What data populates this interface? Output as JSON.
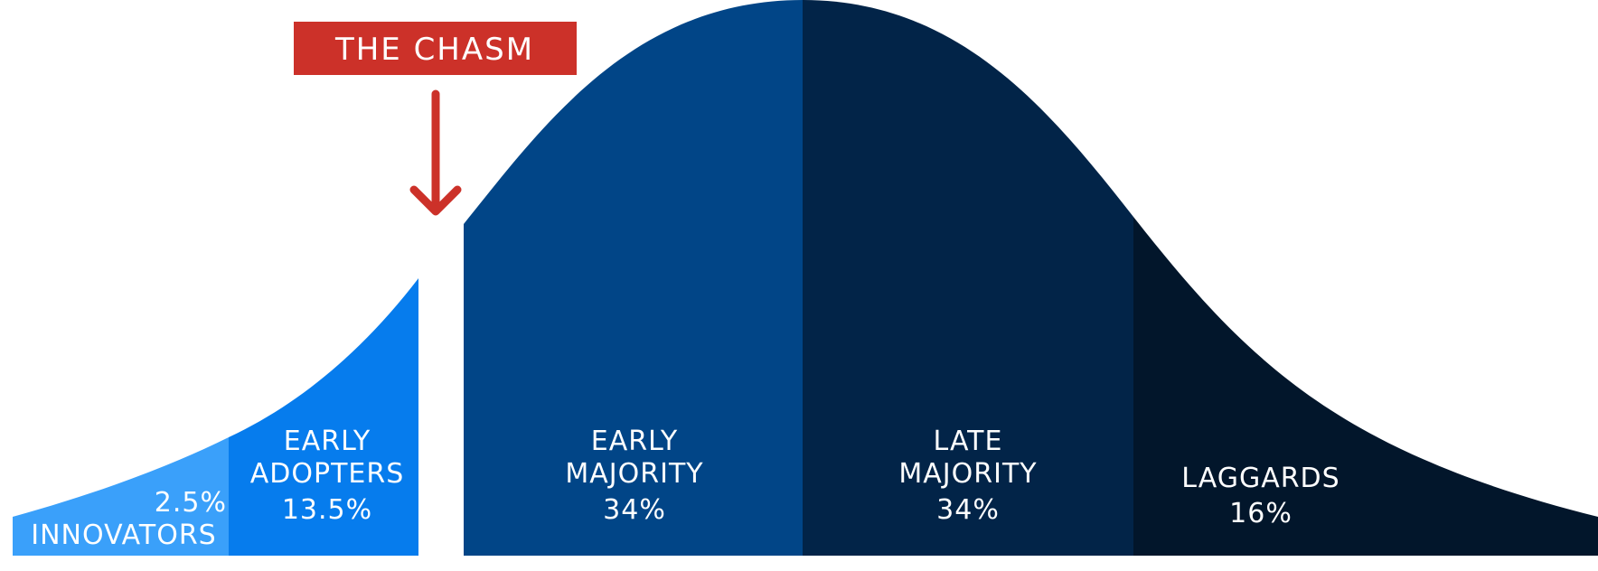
{
  "chasm": {
    "label": "THE CHASM",
    "color": "#cc3129"
  },
  "segments": [
    {
      "id": "innovators",
      "name": "INNOVATORS",
      "percent": "2.5%",
      "color": "#3aa0fa"
    },
    {
      "id": "early-adopters",
      "name_line1": "EARLY",
      "name_line2": "ADOPTERS",
      "percent": "13.5%",
      "color": "#067ced"
    },
    {
      "id": "early-majority",
      "name_line1": "EARLY",
      "name_line2": "MAJORITY",
      "percent": "34%",
      "color": "#014587"
    },
    {
      "id": "late-majority",
      "name_line1": "LATE",
      "name_line2": "MAJORITY",
      "percent": "34%",
      "color": "#022448"
    },
    {
      "id": "laggards",
      "name": "LAGGARDS",
      "percent": "16%",
      "color": "#02162b"
    }
  ]
}
